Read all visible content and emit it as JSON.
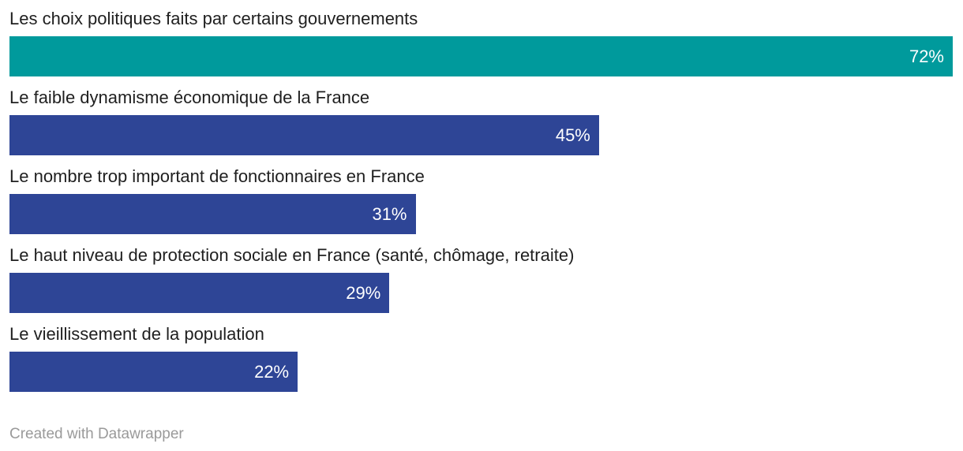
{
  "chart_data": {
    "type": "bar",
    "orientation": "horizontal",
    "title": "",
    "xlabel": "",
    "ylabel": "",
    "xlim": [
      0,
      72
    ],
    "grid": false,
    "legend": false,
    "categories": [
      "Les choix politiques faits par certains gouvernements",
      "Le faible dynamisme économique de la France",
      "Le nombre trop important de fonctionnaires en France",
      "Le haut niveau de protection sociale en France (santé, chômage, retraite)",
      "Le vieillissement de la population"
    ],
    "values": [
      72,
      45,
      31,
      29,
      22
    ],
    "value_labels": [
      "72%",
      "45%",
      "31%",
      "29%",
      "22%"
    ],
    "bar_colors": [
      "#009a9c",
      "#2e4596",
      "#2e4596",
      "#2e4596",
      "#2e4596"
    ]
  },
  "colors": {
    "highlight_teal": "#009a9c",
    "base_blue": "#2e4596",
    "label_text": "#1f1f1f",
    "value_text": "#ffffff",
    "credit_text": "#9a9a9a",
    "background": "#ffffff"
  },
  "footer": {
    "credit": "Created with Datawrapper"
  }
}
